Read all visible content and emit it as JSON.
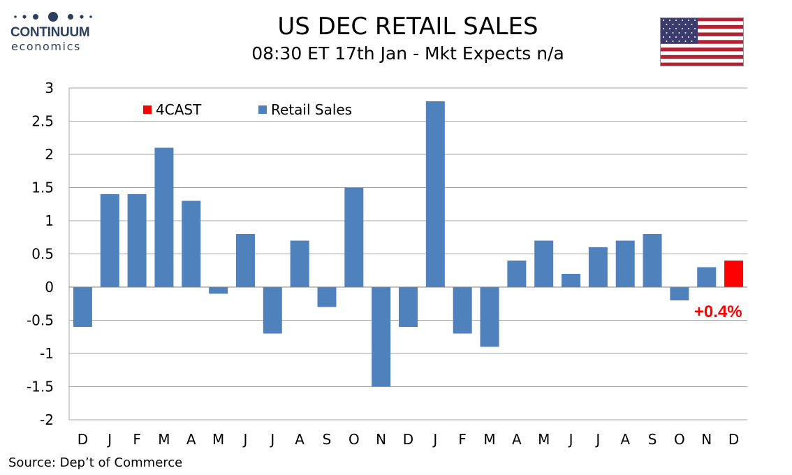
{
  "logo": {
    "name": "CONTINUUM",
    "sub": "economics"
  },
  "header": {
    "title": "US DEC RETAIL SALES",
    "subtitle": "08:30 ET 17th Jan - Mkt Expects n/a"
  },
  "flag_icon": "us-flag-icon",
  "source": "Source: Dep’t of Commerce",
  "colors": {
    "series": "#4f81bd",
    "forecast": "#ff0000",
    "grid": "#a6a6a6",
    "logo": "#2b3f5f"
  },
  "chart_data": {
    "type": "bar",
    "categories": [
      "D",
      "J",
      "F",
      "M",
      "A",
      "M",
      "J",
      "J",
      "A",
      "S",
      "O",
      "N",
      "D",
      "J",
      "F",
      "M",
      "A",
      "M",
      "J",
      "J",
      "A",
      "S",
      "O",
      "N",
      "D"
    ],
    "series": [
      {
        "name": "Retail Sales",
        "values": [
          -0.6,
          1.4,
          1.4,
          2.1,
          1.3,
          -0.1,
          0.8,
          -0.7,
          0.7,
          -0.3,
          1.5,
          -1.5,
          -0.6,
          2.8,
          -0.7,
          -0.9,
          0.4,
          0.7,
          0.2,
          0.6,
          0.7,
          0.8,
          -0.2,
          0.3,
          null
        ]
      },
      {
        "name": "4CAST",
        "values": [
          null,
          null,
          null,
          null,
          null,
          null,
          null,
          null,
          null,
          null,
          null,
          null,
          null,
          null,
          null,
          null,
          null,
          null,
          null,
          null,
          null,
          null,
          null,
          null,
          0.4
        ]
      }
    ],
    "ylim": [
      -2,
      3
    ],
    "yticks": [
      "3",
      "2.5",
      "2",
      "1.5",
      "1",
      "0.5",
      "0",
      "-0.5",
      "-1",
      "-1.5",
      "-2"
    ],
    "annotation": "+0.4%",
    "legend_position": "top-left",
    "grid": true
  }
}
